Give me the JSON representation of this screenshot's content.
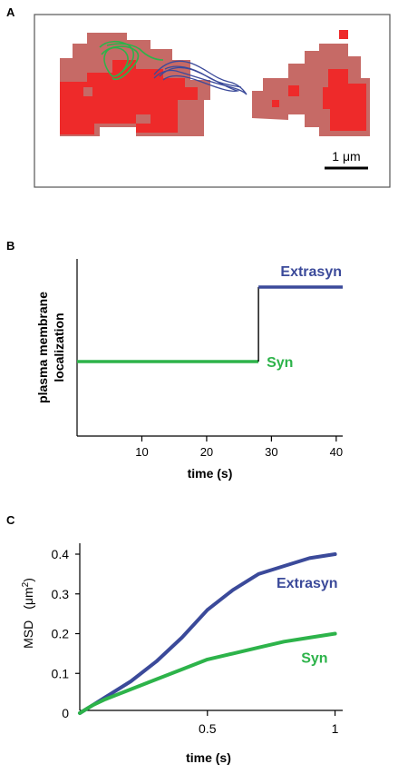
{
  "panels": {
    "a": {
      "letter": "A",
      "scalebar_label": "1 μm"
    },
    "b": {
      "letter": "B"
    },
    "c": {
      "letter": "C"
    }
  },
  "colors": {
    "extrasyn": "#3b4a9a",
    "syn": "#2db34a",
    "cell_light": "#c66a66",
    "cell_bright": "#ee2a2a"
  },
  "chart_data": [
    {
      "panel": "B",
      "type": "line",
      "title": "",
      "xlabel": "time (s)",
      "ylabel_lines": [
        "plasma membrane",
        "localization"
      ],
      "xlim": [
        0,
        41
      ],
      "xticks": [
        10,
        20,
        30,
        40
      ],
      "series": [
        {
          "name": "Syn",
          "color": "#2db34a",
          "x": [
            0,
            28
          ],
          "y": [
            0,
            0
          ]
        },
        {
          "name": "Extrasyn",
          "color": "#3b4a9a",
          "x": [
            28,
            41
          ],
          "y": [
            1,
            1
          ]
        }
      ]
    },
    {
      "panel": "C",
      "type": "line",
      "title": "",
      "xlabel": "time (s)",
      "ylabel": "MSD",
      "ylabel_unit": "(μm",
      "ylabel_sup": "2",
      "ylabel_close": ")",
      "xlim": [
        0,
        1.03
      ],
      "ylim": [
        0,
        0.4
      ],
      "xticks": [
        0.5,
        1
      ],
      "xtick_labels": [
        "0.5",
        "1"
      ],
      "yticks": [
        0,
        0.1,
        0.2,
        0.3,
        0.4
      ],
      "ytick_labels": [
        "0",
        "0.1",
        "0.2",
        "0.3",
        "0.4"
      ],
      "series": [
        {
          "name": "Extrasyn",
          "color": "#3b4a9a",
          "x": [
            0,
            0.05,
            0.1,
            0.2,
            0.3,
            0.4,
            0.5,
            0.6,
            0.7,
            0.8,
            0.9,
            1.0
          ],
          "y": [
            0,
            0.02,
            0.04,
            0.08,
            0.13,
            0.19,
            0.26,
            0.31,
            0.35,
            0.37,
            0.39,
            0.4
          ]
        },
        {
          "name": "Syn",
          "color": "#2db34a",
          "x": [
            0,
            0.05,
            0.1,
            0.2,
            0.3,
            0.4,
            0.5,
            0.6,
            0.7,
            0.8,
            0.9,
            1.0
          ],
          "y": [
            0,
            0.02,
            0.035,
            0.06,
            0.085,
            0.11,
            0.135,
            0.15,
            0.165,
            0.18,
            0.19,
            0.2
          ]
        }
      ]
    }
  ]
}
